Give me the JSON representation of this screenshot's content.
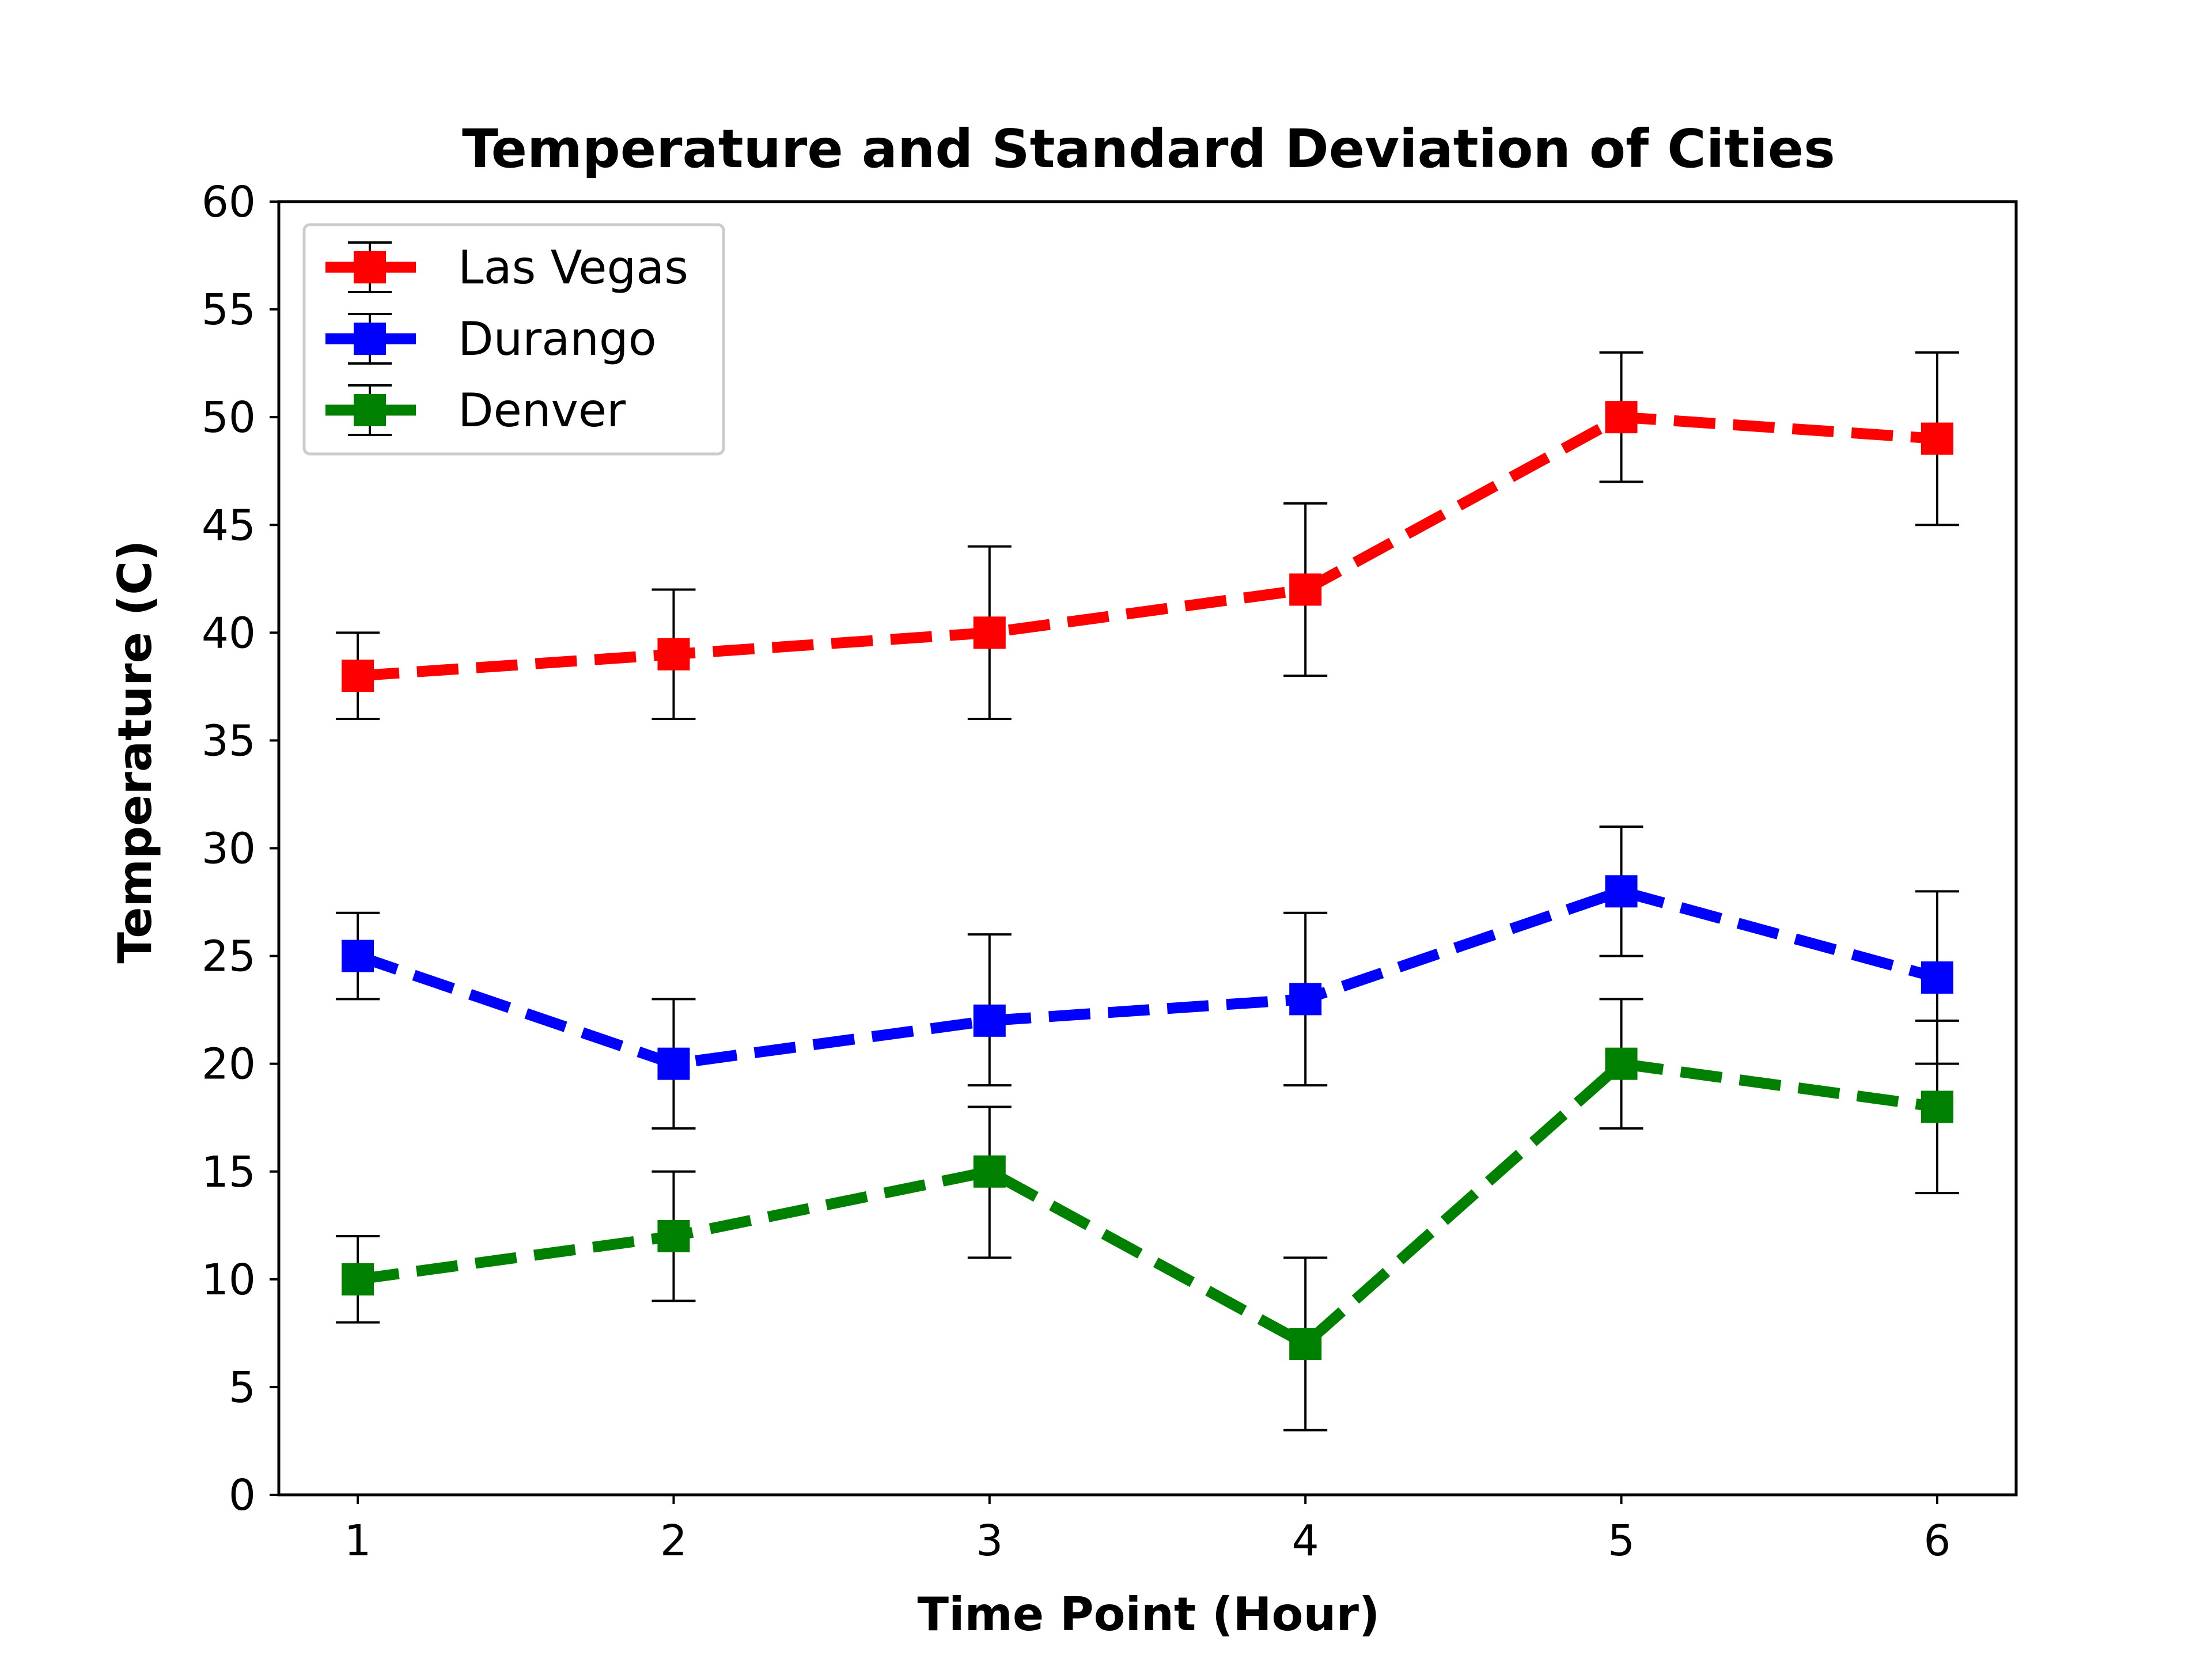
{
  "chart_data": {
    "type": "line",
    "title": "Temperature and Standard Deviation of Cities",
    "xlabel": "Time Point (Hour)",
    "ylabel": "Temperature (C)",
    "x": [
      1,
      2,
      3,
      4,
      5,
      6
    ],
    "xlim": [
      0.75,
      6.25
    ],
    "ylim": [
      0,
      60
    ],
    "xticks": [
      1,
      2,
      3,
      4,
      5,
      6
    ],
    "yticks": [
      0,
      5,
      10,
      15,
      20,
      25,
      30,
      35,
      40,
      45,
      50,
      55,
      60
    ],
    "grid": false,
    "legend_position": "top-left",
    "series": [
      {
        "name": "Las Vegas",
        "color": "#ff0000",
        "values": [
          38,
          39,
          40,
          42,
          50,
          49
        ],
        "error_low": [
          36,
          36,
          36,
          38,
          47,
          45
        ],
        "error_high": [
          40,
          42,
          44,
          46,
          53,
          53
        ]
      },
      {
        "name": "Durango",
        "color": "#0000ff",
        "values": [
          25,
          20,
          22,
          23,
          28,
          24
        ],
        "error_low": [
          23,
          17,
          19,
          19,
          25,
          20
        ],
        "error_high": [
          27,
          23,
          26,
          27,
          31,
          28
        ]
      },
      {
        "name": "Denver",
        "color": "#008000",
        "values": [
          10,
          12,
          15,
          7,
          20,
          18
        ],
        "error_low": [
          8,
          9,
          11,
          3,
          17,
          14
        ],
        "error_high": [
          12,
          15,
          18,
          11,
          23,
          22
        ]
      }
    ]
  }
}
